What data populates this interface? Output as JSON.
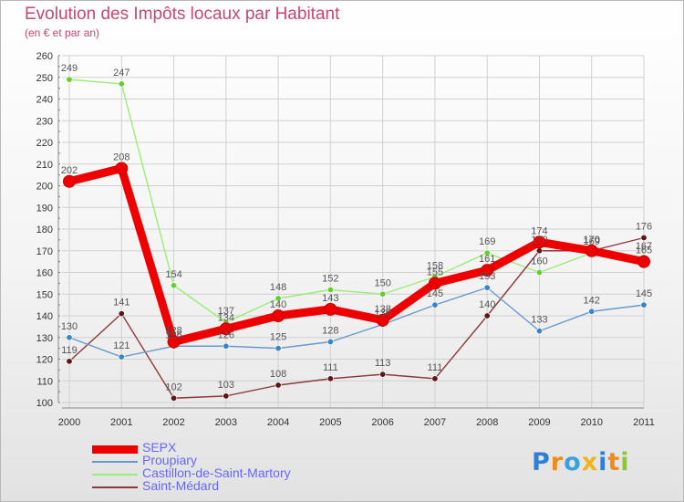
{
  "chart_data": {
    "type": "line",
    "title": "Evolution des Impôts locaux par Habitant",
    "subtitle": "(en € et par an)",
    "xlabel": "",
    "ylabel": "",
    "x": [
      "2000",
      "2001",
      "2002",
      "2003",
      "2004",
      "2005",
      "2006",
      "2007",
      "2008",
      "2009",
      "2010",
      "2011"
    ],
    "ylim": [
      100,
      260
    ],
    "yticks": [
      100,
      110,
      120,
      130,
      140,
      150,
      160,
      170,
      180,
      190,
      200,
      210,
      220,
      230,
      240,
      250,
      260
    ],
    "grid": true,
    "legend_position": "bottom-left",
    "series": [
      {
        "name": "Castillon-de-Saint-Martory",
        "color": "#99ee77",
        "marker": "#66cc33",
        "values": [
          249,
          247,
          154,
          137,
          148,
          152,
          150,
          158,
          169,
          160,
          169,
          167
        ]
      },
      {
        "name": "Saint-Médard",
        "color": "#8b3a3a",
        "marker": "#5c1616",
        "values": [
          119,
          141,
          102,
          103,
          108,
          111,
          113,
          111,
          140,
          170,
          170,
          176
        ]
      },
      {
        "name": "Proupiary",
        "color": "#6699cc",
        "marker": "#3a83c4",
        "values": [
          130,
          121,
          126,
          126,
          125,
          128,
          136,
          145,
          153,
          133,
          142,
          145
        ]
      },
      {
        "name": "SEPX",
        "color": "#ee0000",
        "marker": "#ee0000",
        "values": [
          202,
          208,
          128,
          134,
          140,
          143,
          138,
          155,
          161,
          174,
          170,
          165
        ]
      }
    ],
    "legend_order": [
      "SEPX",
      "Proupiary",
      "Castillon-de-Saint-Martory",
      "Saint-Médard"
    ]
  },
  "logo": {
    "text": "Proxiti",
    "letter_colors": [
      "#2f7fd6",
      "#f08a1c",
      "#3aa1e0",
      "#f2b31b",
      "#2f7fd6",
      "#f08a1c",
      "#8cc63f"
    ]
  }
}
